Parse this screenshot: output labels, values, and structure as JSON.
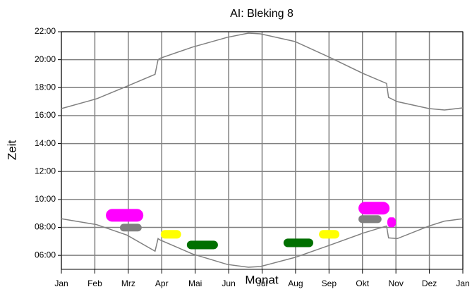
{
  "chart_data": {
    "type": "line",
    "title": "AI: Bleking 8",
    "xlabel": "Monat",
    "ylabel": "Zeit",
    "x": [
      0,
      1.05,
      1.96,
      2.8,
      2.89,
      2.95,
      3.92,
      4.96,
      5.59,
      5.95,
      6.98,
      7.99,
      9.03,
      9.72,
      9.78,
      10.04,
      10.99,
      11.45,
      12
    ],
    "series": [
      {
        "color": "#808080",
        "values": [
          16.5,
          17.2,
          18.1,
          18.95,
          20.0,
          20.1,
          20.9,
          21.6,
          21.9,
          21.85,
          21.3,
          20.2,
          19.0,
          18.3,
          17.3,
          17.0,
          16.5,
          16.4,
          16.55
        ]
      },
      {
        "color": "#808080",
        "values": [
          8.62,
          8.2,
          7.45,
          6.3,
          7.2,
          7.1,
          6.1,
          5.35,
          5.15,
          5.2,
          5.85,
          6.7,
          7.6,
          8.1,
          7.25,
          7.2,
          8.1,
          8.45,
          8.62
        ]
      }
    ],
    "events": [
      {
        "color": "#ff00ff",
        "x": [
          1.33,
          2.45
        ],
        "y": [
          8.41,
          9.32
        ]
      },
      {
        "color": "#808080",
        "x": [
          1.75,
          2.4
        ],
        "y": [
          7.71,
          8.26
        ]
      },
      {
        "color": "#ffff00",
        "x": [
          2.97,
          3.58
        ],
        "y": [
          7.2,
          7.81
        ]
      },
      {
        "color": "#007000",
        "x": [
          3.75,
          4.68
        ],
        "y": [
          6.44,
          7.05
        ]
      },
      {
        "color": "#007000",
        "x": [
          6.64,
          7.53
        ],
        "y": [
          6.59,
          7.2
        ]
      },
      {
        "color": "#ffff00",
        "x": [
          7.7,
          8.31
        ],
        "y": [
          7.2,
          7.81
        ]
      },
      {
        "color": "#ff00ff",
        "x": [
          8.88,
          9.81
        ],
        "y": [
          8.92,
          9.83
        ]
      },
      {
        "color": "#808080",
        "x": [
          8.88,
          9.57
        ],
        "y": [
          8.31,
          8.87
        ]
      },
      {
        "color": "#ff00ff",
        "x": [
          9.74,
          10.0
        ],
        "y": [
          8.01,
          8.72
        ]
      }
    ],
    "xlim": [
      0,
      12
    ],
    "xticks": [
      {
        "value": 0,
        "label": "Jan"
      },
      {
        "value": 1,
        "label": "Feb"
      },
      {
        "value": 2,
        "label": "Mrz"
      },
      {
        "value": 3,
        "label": "Apr"
      },
      {
        "value": 4,
        "label": "Mai"
      },
      {
        "value": 5,
        "label": "Jun"
      },
      {
        "value": 6,
        "label": "Jul"
      },
      {
        "value": 7,
        "label": "Aug"
      },
      {
        "value": 8,
        "label": "Sep"
      },
      {
        "value": 9,
        "label": "Okt"
      },
      {
        "value": 10,
        "label": "Nov"
      },
      {
        "value": 11,
        "label": "Dez"
      },
      {
        "value": 12,
        "label": "Jan"
      }
    ],
    "ylim": [
      5,
      22
    ],
    "yticks": [
      {
        "value": 6,
        "label": "06:00"
      },
      {
        "value": 8,
        "label": "08:00"
      },
      {
        "value": 10,
        "label": "10:00"
      },
      {
        "value": 12,
        "label": "12:00"
      },
      {
        "value": 14,
        "label": "14:00"
      },
      {
        "value": 16,
        "label": "16:00"
      },
      {
        "value": 18,
        "label": "18:00"
      },
      {
        "value": 20,
        "label": "20:00"
      },
      {
        "value": 22,
        "label": "22:00"
      }
    ],
    "grid": true
  }
}
